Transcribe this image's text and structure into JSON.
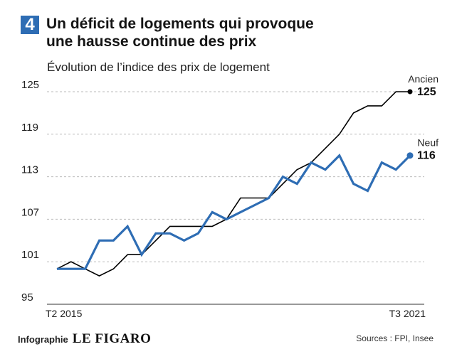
{
  "header": {
    "badge": "4",
    "title_line1": "Un déficit de logements qui provoque",
    "title_line2": "une hausse continue des prix",
    "subtitle": "Évolution de l’indice des prix de logement"
  },
  "footer": {
    "credit": "Infographie",
    "logo": "LE FIGARO",
    "sources": "Sources : FPI, Insee"
  },
  "colors": {
    "ancien": "#000000",
    "neuf": "#2e6db4",
    "grid": "#bbbbbb"
  },
  "chart_data": {
    "type": "line",
    "title": "Un déficit de logements qui provoque une hausse continue des prix",
    "subtitle": "Évolution de l’indice des prix de logement",
    "xlabel": "",
    "ylabel": "",
    "x_tick_labels": {
      "first": "T2 2015",
      "last": "T3 2021"
    },
    "y_ticks": [
      95,
      101,
      107,
      113,
      119,
      125
    ],
    "ylim": [
      95,
      125
    ],
    "grid": true,
    "x": [
      "T2 2015",
      "T3 2015",
      "T4 2015",
      "T1 2016",
      "T2 2016",
      "T3 2016",
      "T4 2016",
      "T1 2017",
      "T2 2017",
      "T3 2017",
      "T4 2017",
      "T1 2018",
      "T2 2018",
      "T3 2018",
      "T4 2018",
      "T1 2019",
      "T2 2019",
      "T3 2019",
      "T4 2019",
      "T1 2020",
      "T2 2020",
      "T3 2020",
      "T4 2020",
      "T1 2021",
      "T2 2021",
      "T3 2021"
    ],
    "series": [
      {
        "name": "Ancien",
        "end_label": "125",
        "values": [
          100,
          101,
          100,
          99,
          100,
          102,
          102,
          104,
          106,
          106,
          106,
          106,
          107,
          110,
          110,
          110,
          112,
          114,
          115,
          117,
          119,
          122,
          123,
          123,
          125,
          125
        ]
      },
      {
        "name": "Neuf",
        "end_label": "116",
        "values": [
          100,
          100,
          100,
          104,
          104,
          106,
          102,
          105,
          105,
          104,
          105,
          108,
          107,
          108,
          109,
          110,
          113,
          112,
          115,
          114,
          116,
          112,
          111,
          115,
          114,
          116
        ]
      }
    ]
  }
}
